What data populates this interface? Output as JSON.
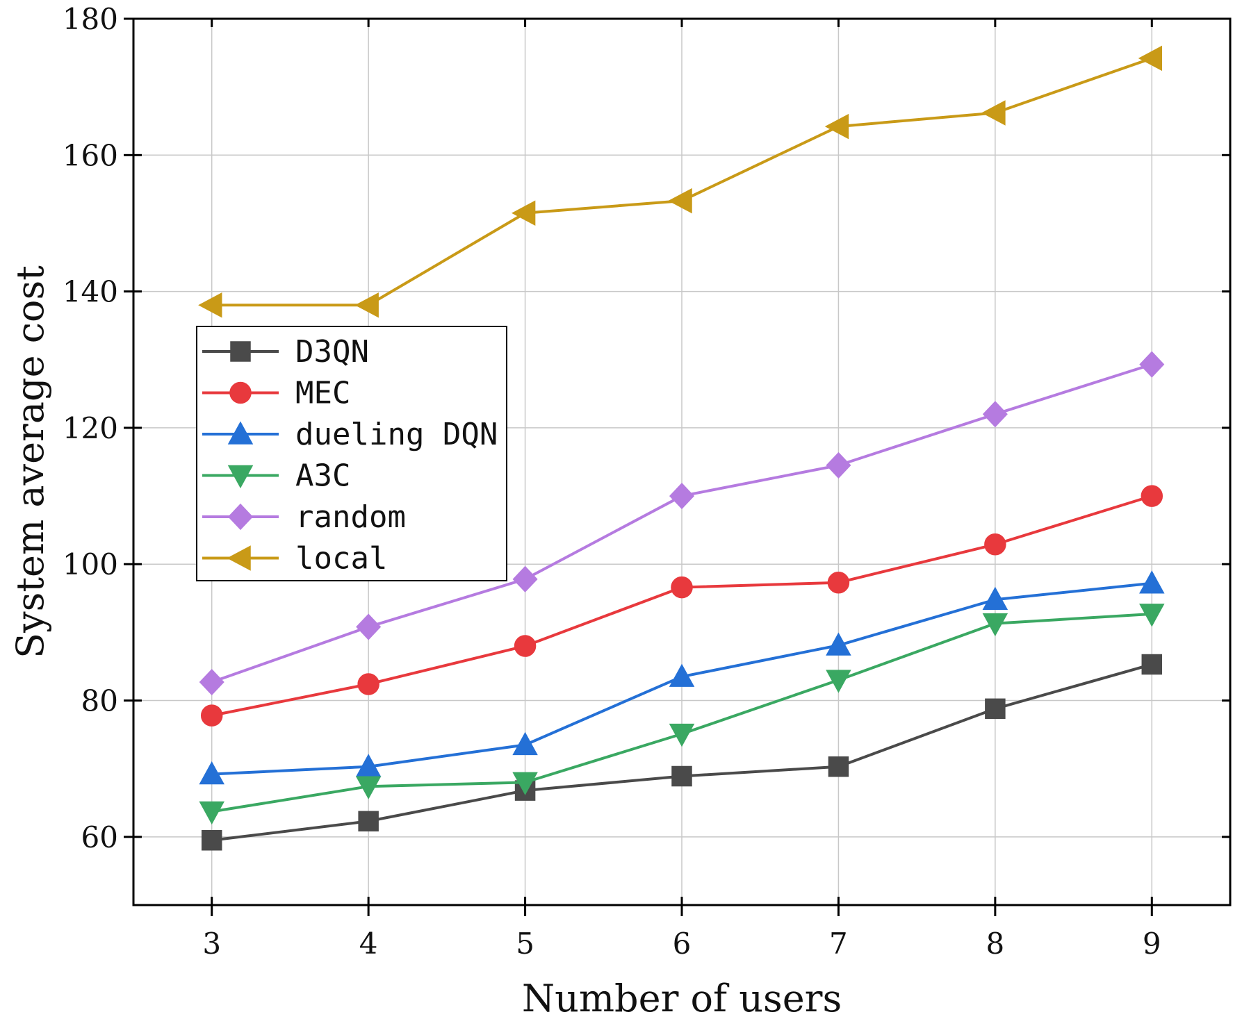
{
  "chart_data": {
    "type": "line",
    "title": "",
    "xlabel": "Number of users",
    "ylabel": "System average cost",
    "x": [
      3,
      4,
      5,
      6,
      7,
      8,
      9
    ],
    "xlim": [
      2.5,
      9.5
    ],
    "ylim": [
      50,
      180
    ],
    "yticks": [
      60,
      80,
      100,
      120,
      140,
      160,
      180
    ],
    "grid": true,
    "legend_position": "upper-left",
    "series": [
      {
        "name": "D3QN",
        "color": "#4a4a4a",
        "marker": "square",
        "values": [
          59.5,
          62.3,
          66.8,
          68.9,
          70.3,
          78.8,
          85.3
        ]
      },
      {
        "name": "MEC",
        "color": "#e8393d",
        "marker": "circle",
        "values": [
          77.8,
          82.4,
          88.0,
          96.6,
          97.3,
          102.9,
          110.0
        ]
      },
      {
        "name": "dueling DQN",
        "color": "#2470d6",
        "marker": "triangle-up",
        "values": [
          69.2,
          70.3,
          73.5,
          83.5,
          88.1,
          94.8,
          97.2
        ]
      },
      {
        "name": "A3C",
        "color": "#3aa862",
        "marker": "triangle-down",
        "values": [
          63.7,
          67.4,
          68.0,
          75.1,
          83.0,
          91.3,
          92.7
        ]
      },
      {
        "name": "random",
        "color": "#b57be0",
        "marker": "diamond",
        "values": [
          82.7,
          90.8,
          97.8,
          110.0,
          114.5,
          122.0,
          129.3
        ]
      },
      {
        "name": "local",
        "color": "#c99a17",
        "marker": "triangle-left",
        "values": [
          138.0,
          138.0,
          151.5,
          153.3,
          164.2,
          166.2,
          174.2
        ]
      }
    ]
  }
}
